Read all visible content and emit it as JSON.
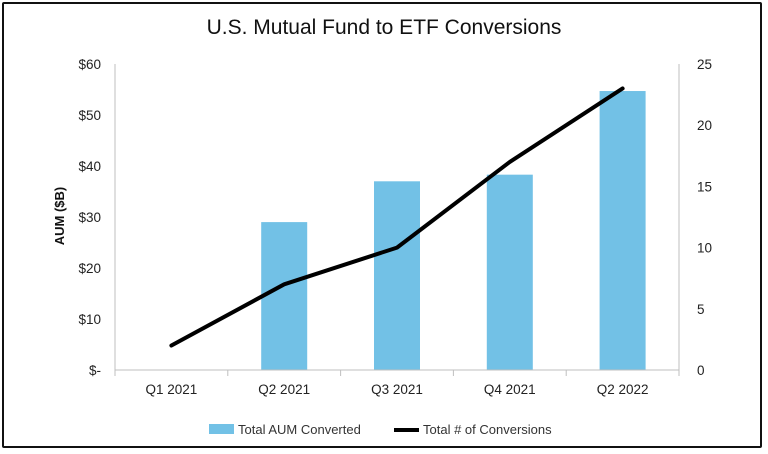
{
  "chart_data": {
    "type": "bar",
    "title": "U.S. Mutual Fund to ETF Conversions",
    "xlabel": "",
    "ylabel": "AUM ($B)",
    "categories": [
      "Q1 2021",
      "Q2 2021",
      "Q3 2021",
      "Q4 2021",
      "Q2 2022"
    ],
    "series": [
      {
        "name": "Total AUM Converted",
        "kind": "bar",
        "axis": "left",
        "values": [
          0,
          29,
          37,
          38.3,
          54.7
        ],
        "color": "#72C1E6"
      },
      {
        "name": "Total # of Conversions",
        "kind": "line",
        "axis": "right",
        "values": [
          2,
          7,
          10,
          17,
          23
        ],
        "color": "#000000"
      }
    ],
    "ylim": [
      0,
      60
    ],
    "y_ticks": [
      0,
      10,
      20,
      30,
      40,
      50,
      60
    ],
    "y_tick_labels": [
      "$-",
      "$10",
      "$20",
      "$30",
      "$40",
      "$50",
      "$60"
    ],
    "y2lim": [
      0,
      25
    ],
    "y2_ticks": [
      0,
      5,
      10,
      15,
      20,
      25
    ],
    "y2_tick_labels": [
      "0",
      "5",
      "10",
      "15",
      "20",
      "25"
    ],
    "grid": false,
    "legend_position": "bottom"
  }
}
